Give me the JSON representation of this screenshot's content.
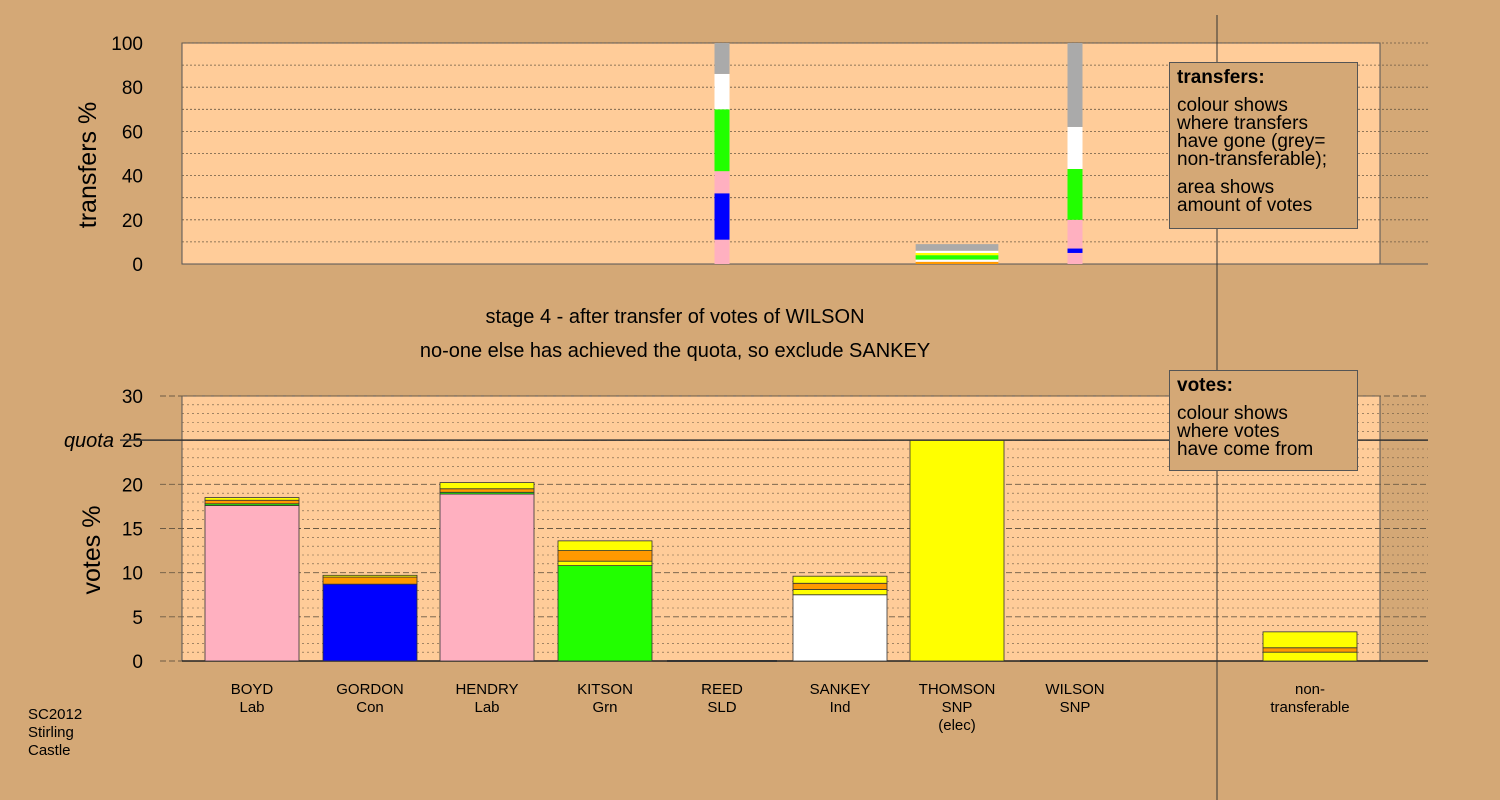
{
  "legends": {
    "transfers": {
      "title": "transfers:",
      "para1": [
        "colour shows",
        "where transfers",
        "have gone (grey=",
        "non-transferable);"
      ],
      "para2": [
        "area shows",
        "amount of votes"
      ]
    },
    "votes": {
      "title": "votes:",
      "para1": [
        "colour shows",
        "where votes",
        "have come from"
      ]
    }
  },
  "stamp": [
    "SC2012",
    "Stirling",
    "Castle"
  ],
  "colors": {
    "background": "#d4a876",
    "plot": "#ffcc99",
    "Lab": "#ffb0c0",
    "Con": "#0000ff",
    "Grn": "#22ff00",
    "SLD": "#ff9900",
    "Ind": "#ffffff",
    "SNP": "#ffff00",
    "nontransferable": "#aaaaaa"
  },
  "chart_data": [
    {
      "type": "bar",
      "stacked": true,
      "title": "",
      "xlabel": "",
      "ylabel": "transfers %",
      "ylim": [
        0,
        100
      ],
      "yticks": [
        0,
        20,
        40,
        60,
        80,
        100
      ],
      "grid": true,
      "legend": "top-right",
      "note": "",
      "columns": [
        {
          "candidate": "REED",
          "segments": [
            {
              "to": "Lab",
              "value": 11
            },
            {
              "to": "Con",
              "value": 21
            },
            {
              "to": "Lab",
              "value": 10
            },
            {
              "to": "Grn",
              "value": 28
            },
            {
              "to": "Ind",
              "value": 16
            },
            {
              "to": "nontransferable",
              "value": 14
            }
          ]
        },
        {
          "candidate": "THOMSON",
          "width_fraction": 1.0,
          "segments": [
            {
              "to": "SLD",
              "value": 1
            },
            {
              "to": "Ind",
              "value": 1
            },
            {
              "to": "Grn",
              "value": 2
            },
            {
              "to": "SNP",
              "value": 1
            },
            {
              "to": "Ind",
              "value": 1
            },
            {
              "to": "nontransferable",
              "value": 3
            }
          ]
        },
        {
          "candidate": "WILSON",
          "segments": [
            {
              "to": "Lab",
              "value": 5
            },
            {
              "to": "Con",
              "value": 2
            },
            {
              "to": "Lab",
              "value": 13
            },
            {
              "to": "Grn",
              "value": 23
            },
            {
              "to": "Ind",
              "value": 19
            },
            {
              "to": "nontransferable",
              "value": 38
            }
          ]
        }
      ]
    },
    {
      "type": "bar",
      "stacked": true,
      "title": "stage 4 - after transfer of votes of WILSON",
      "subtitle": "no-one else has achieved the quota, so exclude SANKEY",
      "xlabel": "",
      "ylabel": "votes %",
      "ylim": [
        0,
        30
      ],
      "yticks": [
        0,
        5,
        10,
        15,
        20,
        25,
        30
      ],
      "quota": 25,
      "quota_label": "quota",
      "grid": true,
      "legend": "top-right",
      "candidates": [
        {
          "name": "BOYD",
          "party": "Lab",
          "extra": "",
          "segments": [
            {
              "from": "Lab",
              "value": 17.6
            },
            {
              "from": "Grn",
              "value": 0.2
            },
            {
              "from": "SLD",
              "value": 0.4
            },
            {
              "from": "SNP",
              "value": 0.3
            }
          ]
        },
        {
          "name": "GORDON",
          "party": "Con",
          "extra": "",
          "segments": [
            {
              "from": "Con",
              "value": 8.7
            },
            {
              "from": "SLD",
              "value": 0.8
            },
            {
              "from": "SNP",
              "value": 0.2
            }
          ]
        },
        {
          "name": "HENDRY",
          "party": "Lab",
          "extra": "",
          "segments": [
            {
              "from": "Lab",
              "value": 18.9
            },
            {
              "from": "Grn",
              "value": 0.2
            },
            {
              "from": "SLD",
              "value": 0.4
            },
            {
              "from": "SNP",
              "value": 0.7
            }
          ]
        },
        {
          "name": "KITSON",
          "party": "Grn",
          "extra": "",
          "segments": [
            {
              "from": "Grn",
              "value": 10.8
            },
            {
              "from": "SNP",
              "value": 0.5
            },
            {
              "from": "SLD",
              "value": 1.2
            },
            {
              "from": "SNP",
              "value": 1.1
            }
          ]
        },
        {
          "name": "REED",
          "party": "SLD",
          "extra": "",
          "segments": []
        },
        {
          "name": "SANKEY",
          "party": "Ind",
          "extra": "",
          "segments": [
            {
              "from": "Ind",
              "value": 7.5
            },
            {
              "from": "SNP",
              "value": 0.6
            },
            {
              "from": "SLD",
              "value": 0.7
            },
            {
              "from": "SNP",
              "value": 0.8
            }
          ]
        },
        {
          "name": "THOMSON",
          "party": "SNP",
          "extra": "(elec)",
          "segments": [
            {
              "from": "SNP",
              "value": 25.0
            }
          ]
        },
        {
          "name": "WILSON",
          "party": "SNP",
          "extra": "",
          "segments": []
        }
      ],
      "nontransferable": {
        "name": "non-",
        "party": "transferable",
        "segments": [
          {
            "from": "SNP",
            "value": 1.0
          },
          {
            "from": "SLD",
            "value": 0.5
          },
          {
            "from": "SNP",
            "value": 1.8
          }
        ]
      }
    }
  ]
}
